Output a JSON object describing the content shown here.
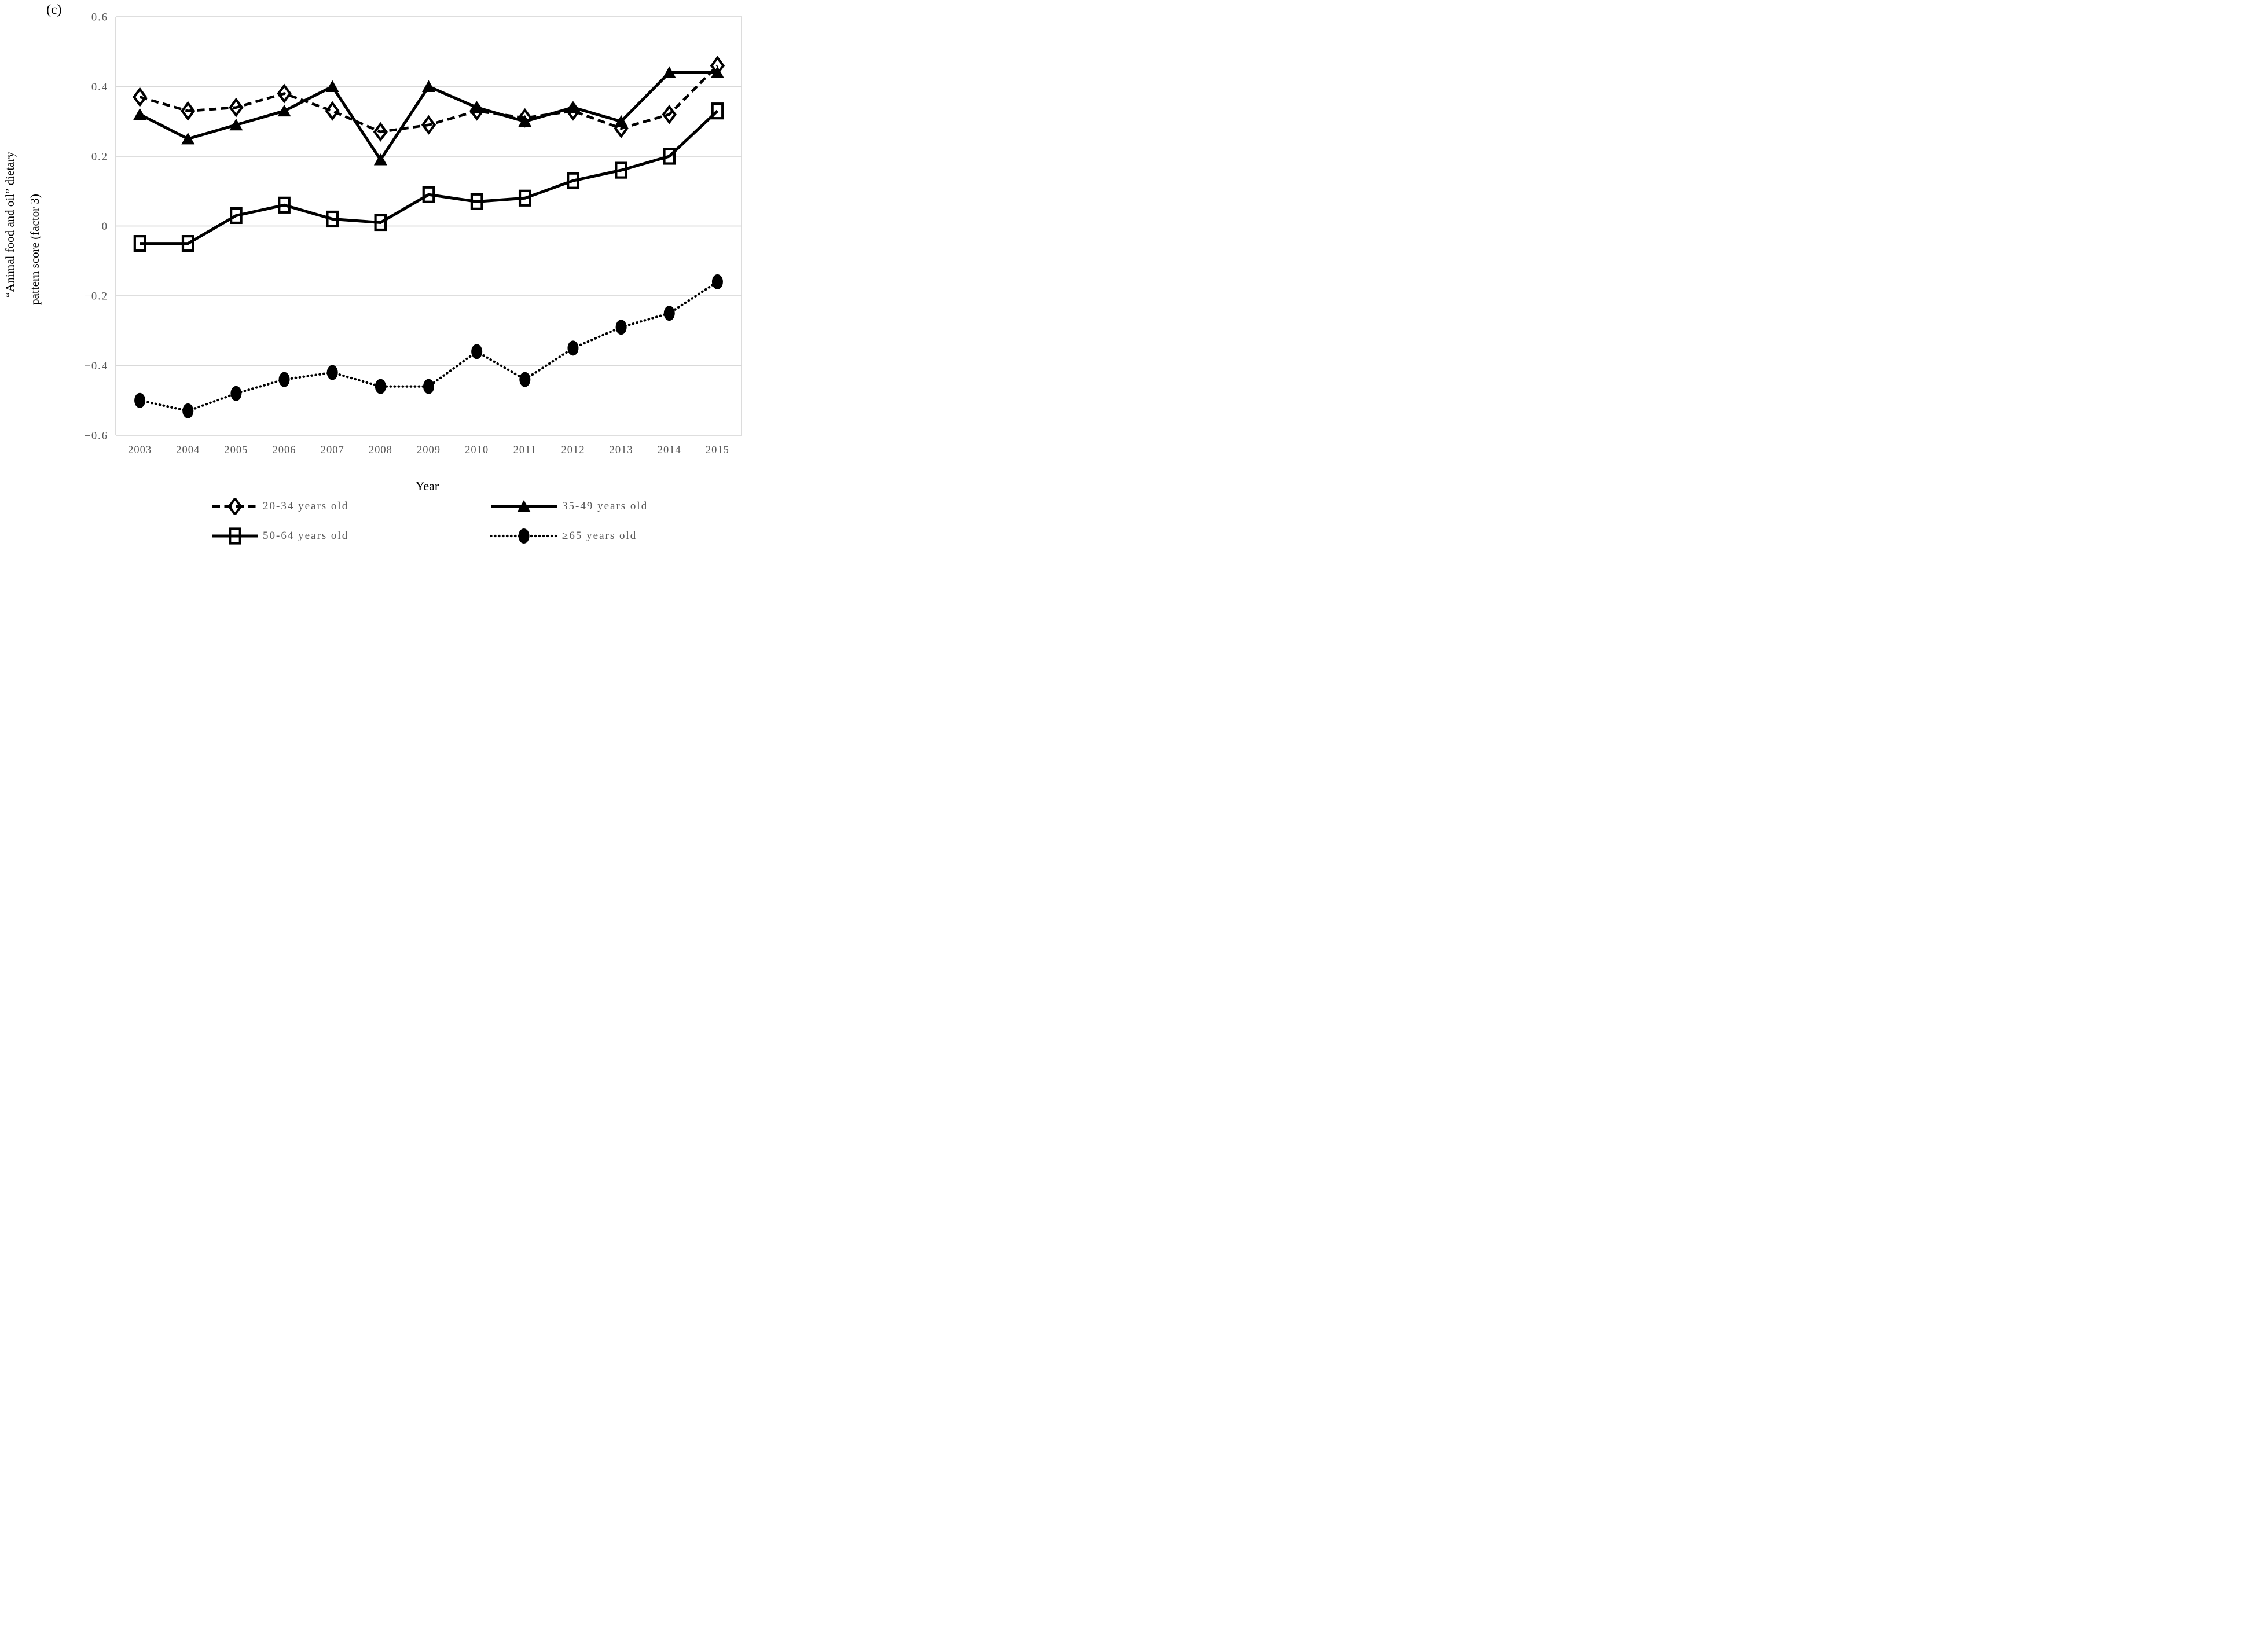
{
  "chart_data": {
    "type": "line",
    "panel_label": "(c)",
    "xlabel": "Year",
    "ylabel_line1": "“Animal food and oil” dietary",
    "ylabel_line2": "pattern score (factor 3)",
    "x": [
      2003,
      2004,
      2005,
      2006,
      2007,
      2008,
      2009,
      2010,
      2011,
      2012,
      2013,
      2014,
      2015
    ],
    "ylim": [
      -0.6,
      0.6
    ],
    "ytick_step": 0.2,
    "ytick_labels": [
      "0.6",
      "0.4",
      "0.2",
      "0",
      "−0.2",
      "−0.4",
      "−0.6"
    ],
    "grid": "horizontal",
    "legend_position": "bottom",
    "colors": {
      "line": "#000000",
      "grid": "#d9d9d9",
      "tick_text": "#595959",
      "title_text": "#000000"
    },
    "series": [
      {
        "key": "20-34-years-old",
        "name": "20-34 years old",
        "marker": "open-diamond",
        "line": "dashed",
        "values": [
          0.37,
          0.33,
          0.34,
          0.38,
          0.33,
          0.27,
          0.29,
          0.33,
          0.31,
          0.33,
          0.28,
          0.32,
          0.46
        ]
      },
      {
        "key": "35-49-years-old",
        "name": "35-49 years old",
        "marker": "filled-triangle",
        "line": "solid",
        "values": [
          0.32,
          0.25,
          0.29,
          0.33,
          0.4,
          0.19,
          0.4,
          0.34,
          0.3,
          0.34,
          0.3,
          0.44,
          0.44
        ]
      },
      {
        "key": "50-64-years-old",
        "name": "50-64 years old",
        "marker": "open-square",
        "line": "solid",
        "values": [
          -0.05,
          -0.05,
          0.03,
          0.06,
          0.02,
          0.01,
          0.09,
          0.07,
          0.08,
          0.13,
          0.16,
          0.2,
          0.33
        ]
      },
      {
        "key": "65-plus-years-old",
        "name": "≥65 years old",
        "marker": "filled-circle",
        "line": "dotted",
        "values": [
          -0.5,
          -0.53,
          -0.48,
          -0.44,
          -0.42,
          -0.46,
          -0.46,
          -0.36,
          -0.44,
          -0.35,
          -0.29,
          -0.25,
          -0.16
        ]
      }
    ]
  }
}
